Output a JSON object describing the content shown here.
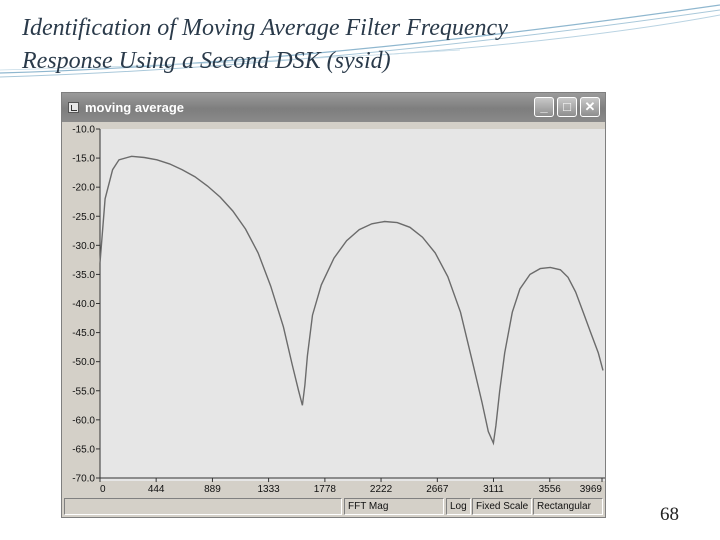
{
  "slide": {
    "title_line1": "Identification of Moving Average Filter Frequency",
    "title_line2": "Response Using a Second DSK (sysid)",
    "page_number": "68"
  },
  "window": {
    "title": "moving average",
    "minimize_glyph": "_",
    "maximize_glyph": "□",
    "close_glyph": "✕",
    "icon": "graph-app-icon"
  },
  "statusbar": {
    "pane_empty": "",
    "mode": "FFT Mag",
    "scale_type": "Log",
    "scale_mode": "Fixed Scale",
    "window_type": "Rectangular"
  },
  "colors": {
    "plot_bg": "#e6e6e6",
    "trace": "#6b6b6b",
    "titlebar": "#8a8a8a",
    "title_text": "#2a3a4a"
  },
  "chart_data": {
    "type": "line",
    "x_tick_labels": [
      "0",
      "444",
      "889",
      "1333",
      "1778",
      "2222",
      "2667",
      "3111",
      "3556",
      "3969"
    ],
    "y_tick_labels": [
      "-10.0",
      "-15.0",
      "-20.0",
      "-25.0",
      "-30.0",
      "-35.0",
      "-40.0",
      "-45.0",
      "-50.0",
      "-55.0",
      "-60.0",
      "-65.0",
      "-70.0"
    ],
    "xlim": [
      0,
      4000
    ],
    "ylim": [
      -71,
      -10
    ],
    "grid": false,
    "series": [
      {
        "x": [
          0,
          40,
          100,
          150,
          250,
          350,
          450,
          550,
          650,
          750,
          850,
          950,
          1050,
          1150,
          1250,
          1350,
          1450,
          1520,
          1570,
          1600,
          1620,
          1640,
          1680,
          1750,
          1850,
          1950,
          2050,
          2150,
          2250,
          2350,
          2450,
          2550,
          2650,
          2750,
          2850,
          2950,
          3020,
          3070,
          3110,
          3130,
          3160,
          3200,
          3260,
          3320,
          3400,
          3480,
          3560,
          3640,
          3700,
          3760,
          3820,
          3880,
          3940,
          3990
        ],
        "y": [
          -33,
          -22,
          -17,
          -15.3,
          -14.7,
          -14.9,
          -15.3,
          -16,
          -17,
          -18.2,
          -19.8,
          -21.7,
          -24.1,
          -27.2,
          -31.3,
          -37,
          -44,
          -50.5,
          -55,
          -57.5,
          -54,
          -49,
          -42,
          -36.8,
          -32.2,
          -29.2,
          -27.3,
          -26.3,
          -25.9,
          -26.1,
          -26.9,
          -28.6,
          -31.3,
          -35.4,
          -41.5,
          -50.5,
          -57,
          -62,
          -64,
          -61,
          -55,
          -48.5,
          -41.5,
          -37.5,
          -35,
          -34,
          -33.8,
          -34.2,
          -35.5,
          -38,
          -41.5,
          -45,
          -48.5,
          -51.5
        ]
      }
    ]
  }
}
